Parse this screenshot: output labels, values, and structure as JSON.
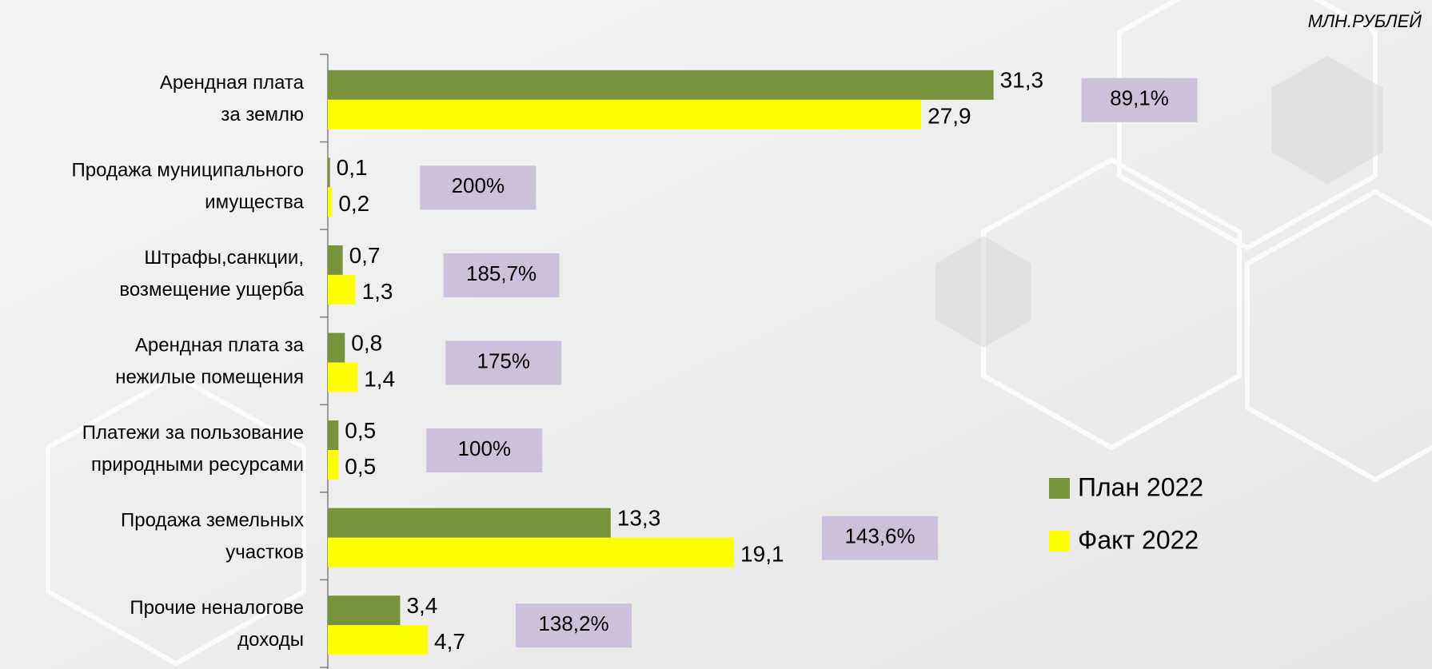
{
  "chart_data": {
    "type": "bar",
    "orientation": "horizontal",
    "unit_label": "МЛН.РУБЛЕЙ",
    "categories": [
      "Арендная плата\nза землю",
      "Продажа муниципального\nимущества",
      "Штрафы,санкции,\nвозмещение ущерба",
      "Арендная плата за\nнежилые помещения",
      "Платежи за пользование\nприродными ресурсами",
      "Продажа земельных\nучастков",
      "Прочие неналогове\nдоходы"
    ],
    "series": [
      {
        "name": "План 2022",
        "color": "#77933c",
        "values": [
          31.3,
          0.1,
          0.7,
          0.8,
          0.5,
          13.3,
          3.4
        ],
        "value_labels": [
          "31,3",
          "0,1",
          "0,7",
          "0,8",
          "0,5",
          "13,3",
          "3,4"
        ]
      },
      {
        "name": "Факт 2022",
        "color": "#ffff00",
        "values": [
          27.9,
          0.2,
          1.3,
          1.4,
          0.5,
          19.1,
          4.7
        ],
        "value_labels": [
          "27,9",
          "0,2",
          "1,3",
          "1,4",
          "0,5",
          "19,1",
          "4,7"
        ]
      }
    ],
    "annotations": [
      "89,1%",
      "200%",
      "185,7%",
      "175%",
      "100%",
      "143,6%",
      "138,2%"
    ],
    "annotation_color": "#ccc0da",
    "xlim": [
      0,
      35
    ],
    "legend": "lower right"
  }
}
